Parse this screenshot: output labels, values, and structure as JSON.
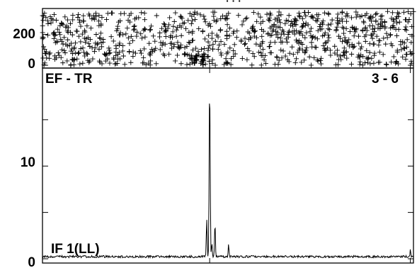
{
  "chart_data": [
    {
      "type": "scatter",
      "title": "",
      "xlabel": "",
      "ylabel": "",
      "ylim": [
        0,
        350
      ],
      "y_ticks": [
        0,
        200
      ],
      "y_tick_labels": [
        "0",
        "200"
      ],
      "marker": "+",
      "point_count": 900,
      "dense_clusters_x": [
        13.0,
        12.3
      ],
      "header_text_partial": "·  ·  ·"
    },
    {
      "type": "line",
      "xlim": [
        0,
        30
      ],
      "ylim": [
        0,
        19.5
      ],
      "y_ticks": [
        0,
        10
      ],
      "y_tick_labels": [
        "0",
        "10"
      ],
      "baseline_label": "EF - TR",
      "pair_label": "3 - 6",
      "trace_label": "IF 1(LL)",
      "noise_level": 0.35,
      "peaks": [
        {
          "x": 13.52,
          "y": 18.6
        },
        {
          "x": 13.28,
          "y": 4.2
        },
        {
          "x": 13.95,
          "y": 3.8
        },
        {
          "x": 13.7,
          "y": 1.6
        },
        {
          "x": 15.05,
          "y": 1.5
        },
        {
          "x": 29.75,
          "y": 1.0
        }
      ]
    }
  ]
}
